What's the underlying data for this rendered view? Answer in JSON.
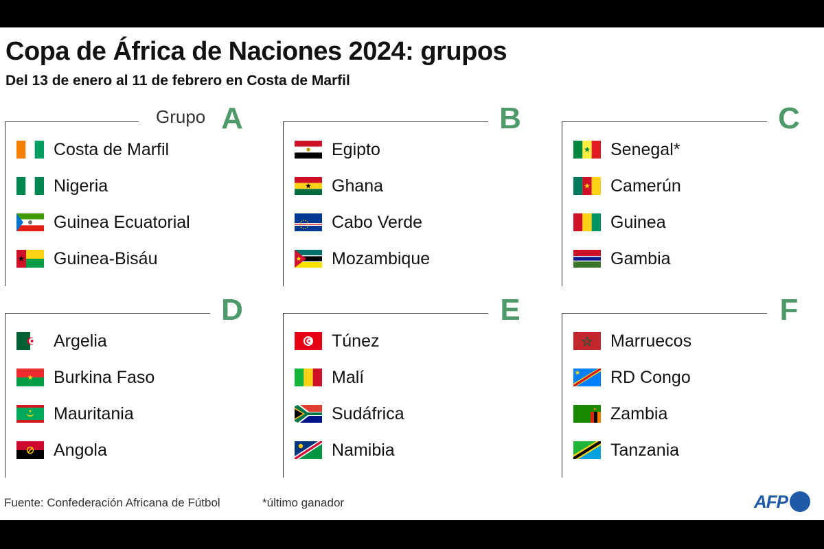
{
  "title": "Copa de África de Naciones 2024: grupos",
  "subtitle": "Del 13 de enero al 11 de febrero en Costa de Marfil",
  "group_prefix": "Grupo",
  "groups": [
    {
      "letter": "A",
      "teams": [
        {
          "name": "Costa de Marfil",
          "flag": "ivory-coast"
        },
        {
          "name": "Nigeria",
          "flag": "nigeria"
        },
        {
          "name": "Guinea Ecuatorial",
          "flag": "equatorial-guinea"
        },
        {
          "name": "Guinea-Bisáu",
          "flag": "guinea-bissau"
        }
      ]
    },
    {
      "letter": "B",
      "teams": [
        {
          "name": "Egipto",
          "flag": "egypt"
        },
        {
          "name": "Ghana",
          "flag": "ghana"
        },
        {
          "name": "Cabo Verde",
          "flag": "cape-verde"
        },
        {
          "name": "Mozambique",
          "flag": "mozambique"
        }
      ]
    },
    {
      "letter": "C",
      "teams": [
        {
          "name": "Senegal*",
          "flag": "senegal"
        },
        {
          "name": "Camerún",
          "flag": "cameroon"
        },
        {
          "name": "Guinea",
          "flag": "guinea"
        },
        {
          "name": "Gambia",
          "flag": "gambia"
        }
      ]
    },
    {
      "letter": "D",
      "teams": [
        {
          "name": "Argelia",
          "flag": "algeria"
        },
        {
          "name": "Burkina Faso",
          "flag": "burkina-faso"
        },
        {
          "name": "Mauritania",
          "flag": "mauritania"
        },
        {
          "name": "Angola",
          "flag": "angola"
        }
      ]
    },
    {
      "letter": "E",
      "teams": [
        {
          "name": "Túnez",
          "flag": "tunisia"
        },
        {
          "name": "Malí",
          "flag": "mali"
        },
        {
          "name": "Sudáfrica",
          "flag": "south-africa"
        },
        {
          "name": "Namibia",
          "flag": "namibia"
        }
      ]
    },
    {
      "letter": "F",
      "teams": [
        {
          "name": "Marruecos",
          "flag": "morocco"
        },
        {
          "name": "RD Congo",
          "flag": "dr-congo"
        },
        {
          "name": "Zambia",
          "flag": "zambia"
        },
        {
          "name": "Tanzania",
          "flag": "tanzania"
        }
      ]
    }
  ],
  "footer": {
    "source": "Fuente: Confederación Africana de Fútbol",
    "note": "*último ganador"
  },
  "logo": {
    "text": "AFP"
  },
  "colors": {
    "accent_green": "#4e9a6a",
    "afp_blue": "#1e5aa8"
  }
}
